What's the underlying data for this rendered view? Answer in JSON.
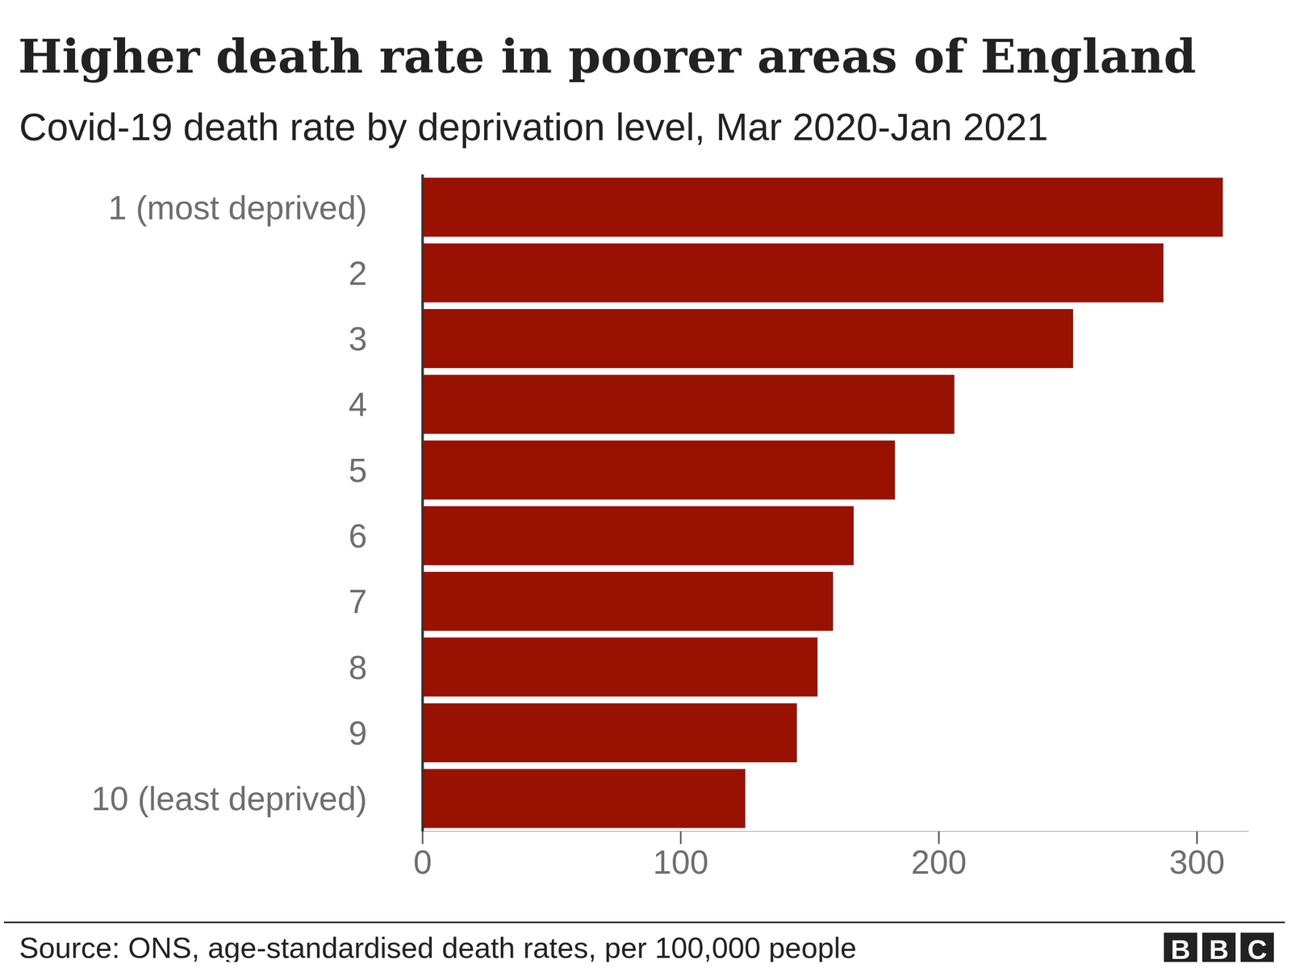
{
  "chart_data": {
    "type": "bar",
    "title": "Higher death rate in poorer areas of England",
    "subtitle": "Covid-19 death rate by deprivation level, Mar 2020-Jan 2021",
    "source": "Source: ONS, age-standardised death rates, per 100,000 people",
    "logo": "BBC",
    "orientation": "horizontal",
    "categories": [
      "1 (most deprived)",
      "2",
      "3",
      "4",
      "5",
      "6",
      "7",
      "8",
      "9",
      "10 (least deprived)"
    ],
    "values": [
      310,
      287,
      252,
      206,
      183,
      167,
      159,
      153,
      145,
      125
    ],
    "color": "#991100",
    "xlim": [
      0,
      320
    ],
    "xticks": [
      0,
      100,
      200,
      300
    ],
    "grid": false
  }
}
